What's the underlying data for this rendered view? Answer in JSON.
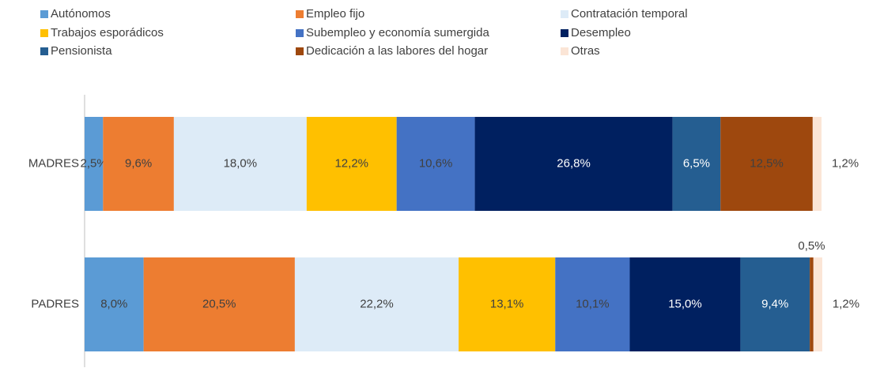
{
  "chart_data": {
    "type": "stacked-bar-horizontal",
    "categories": [
      "MADRES",
      "PADRES"
    ],
    "xlim": [
      0,
      100
    ],
    "series": [
      {
        "name": "Autónomos",
        "color": "#5B9BD5",
        "values": [
          2.5,
          8.0
        ],
        "value_labels": [
          "2,5%",
          "8,0%"
        ]
      },
      {
        "name": "Empleo fijo",
        "color": "#ED7D31",
        "values": [
          9.6,
          20.5
        ],
        "value_labels": [
          "9,6%",
          "20,5%"
        ]
      },
      {
        "name": "Contratación temporal",
        "color": "#DDEBF7",
        "values": [
          18.0,
          22.2
        ],
        "value_labels": [
          "18,0%",
          "22,2%"
        ]
      },
      {
        "name": "Trabajos esporádicos",
        "color": "#FFC000",
        "values": [
          12.2,
          13.1
        ],
        "value_labels": [
          "12,2%",
          "13,1%"
        ]
      },
      {
        "name": "Subempleo y economía sumergida",
        "color": "#4472C4",
        "values": [
          10.6,
          10.1
        ],
        "value_labels": [
          "10,6%",
          "10,1%"
        ]
      },
      {
        "name": "Desempleo",
        "color": "#002060",
        "values": [
          26.8,
          15.0
        ],
        "value_labels": [
          "26,8%",
          "15,0%"
        ]
      },
      {
        "name": "Pensionista",
        "color": "#255E91",
        "values": [
          6.5,
          9.4
        ],
        "value_labels": [
          "6,5%",
          "9,4%"
        ]
      },
      {
        "name": "Dedicación a las labores del hogar",
        "color": "#9E480E",
        "values": [
          12.5,
          0.5
        ],
        "value_labels": [
          "12,5%",
          "0,5%"
        ]
      },
      {
        "name": "Otras",
        "color": "#FBE5D6",
        "values": [
          1.2,
          1.2
        ],
        "value_labels": [
          "1,2%",
          "1,2%"
        ]
      }
    ]
  }
}
